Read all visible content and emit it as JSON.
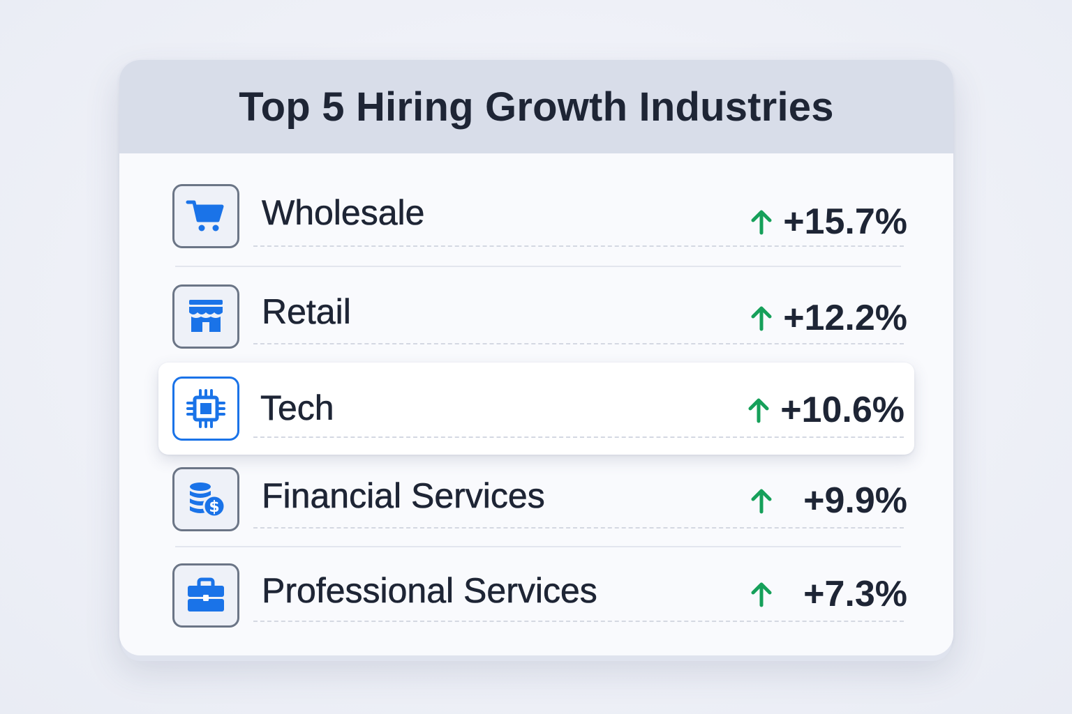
{
  "card": {
    "title": "Top 5 Hiring Growth Industries"
  },
  "industries": [
    {
      "name": "Wholesale",
      "change": "+15.7%",
      "icon": "shopping-cart-icon",
      "trend": "up"
    },
    {
      "name": "Retail",
      "change": "+12.2%",
      "icon": "storefront-icon",
      "trend": "up"
    },
    {
      "name": "Tech",
      "change": "+10.6%",
      "icon": "microchip-icon",
      "trend": "up",
      "highlighted": true
    },
    {
      "name": "Financial Services",
      "change": "+9.9%",
      "icon": "coins-dollar-icon",
      "trend": "up"
    },
    {
      "name": "Professional Services",
      "change": "+7.3%",
      "icon": "briefcase-icon",
      "trend": "up"
    }
  ],
  "colors": {
    "accent": "#1a73e8",
    "trend_up": "#16a05a",
    "text": "#1e2535",
    "header_bg": "#d8dde9"
  }
}
